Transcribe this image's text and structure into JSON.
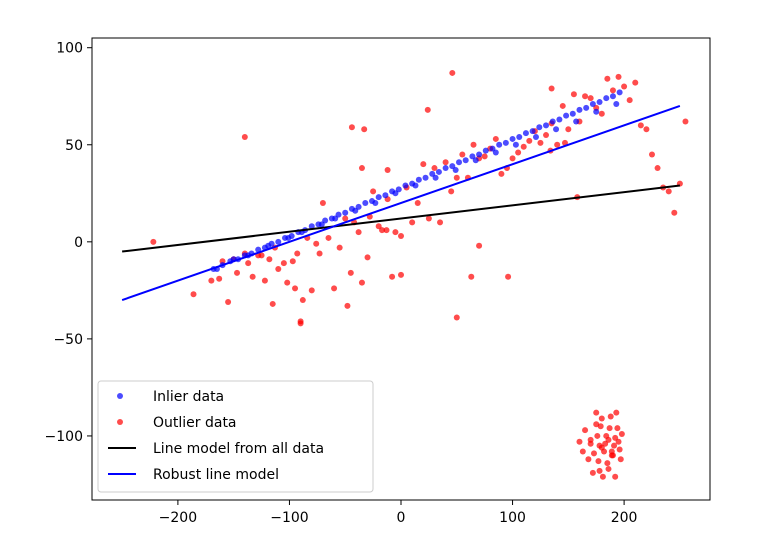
{
  "chart_data": {
    "type": "scatter",
    "title": "",
    "xlabel": "",
    "ylabel": "",
    "xlim": [
      -277,
      277
    ],
    "ylim": [
      -133,
      105
    ],
    "xticks": [
      -200,
      -100,
      0,
      100,
      200
    ],
    "xtick_labels": [
      "−200",
      "−100",
      "0",
      "100",
      "200"
    ],
    "yticks": [
      -100,
      -50,
      0,
      50,
      100
    ],
    "ytick_labels": [
      "−100",
      "−50",
      "0",
      "50",
      "100"
    ],
    "grid": false,
    "legend_position": "lower-left",
    "series": [
      {
        "name": "Inlier data",
        "kind": "points",
        "color": "#0000ff",
        "x": [
          -168,
          -160,
          -153,
          -146,
          -140,
          -134,
          -128,
          -122,
          -116,
          -110,
          -104,
          -98,
          -92,
          -86,
          -80,
          -74,
          -68,
          -62,
          -56,
          -50,
          -44,
          -38,
          -32,
          -26,
          -20,
          -14,
          -8,
          -2,
          4,
          10,
          16,
          22,
          28,
          34,
          40,
          46,
          52,
          58,
          64,
          70,
          76,
          82,
          88,
          94,
          100,
          106,
          112,
          118,
          124,
          130,
          136,
          142,
          148,
          154,
          160,
          166,
          172,
          178,
          184,
          190,
          196,
          -165,
          -150,
          -137,
          -119,
          -101,
          -89,
          -71,
          -59,
          -41,
          -23,
          -5,
          13,
          31,
          49,
          67,
          85,
          103,
          121,
          139,
          157,
          175,
          193
        ],
        "y": [
          -14,
          -12,
          -10,
          -9,
          -7,
          -6,
          -4,
          -3,
          -1,
          0,
          2,
          3,
          5,
          6,
          8,
          9,
          11,
          12,
          14,
          15,
          17,
          18,
          20,
          21,
          23,
          24,
          26,
          27,
          29,
          30,
          32,
          33,
          35,
          36,
          38,
          39,
          41,
          42,
          44,
          45,
          47,
          48,
          50,
          51,
          53,
          54,
          56,
          57,
          59,
          60,
          62,
          63,
          65,
          66,
          68,
          69,
          71,
          72,
          74,
          75,
          77,
          -14,
          -9,
          -7,
          -2,
          2,
          5,
          9,
          12,
          16,
          20,
          25,
          29,
          33,
          37,
          42,
          46,
          50,
          54,
          58,
          62,
          67,
          71
        ]
      },
      {
        "name": "Outlier data",
        "kind": "points",
        "color": "#ff0000",
        "x": [
          -222,
          -186,
          -170,
          -163,
          -160,
          -155,
          -150,
          -147,
          -140,
          -137,
          -133,
          -128,
          -125,
          -122,
          -118,
          -115,
          -113,
          -110,
          -105,
          -102,
          -97,
          -95,
          -93,
          -90,
          -88,
          -84,
          -80,
          -76,
          -73,
          -70,
          -65,
          -60,
          -55,
          -50,
          -48,
          -45,
          -42,
          -38,
          -35,
          -30,
          -28,
          -25,
          -20,
          -17,
          -12,
          -8,
          -5,
          0,
          5,
          10,
          15,
          20,
          25,
          30,
          40,
          45,
          50,
          55,
          60,
          65,
          70,
          75,
          80,
          85,
          90,
          95,
          100,
          105,
          110,
          115,
          120,
          125,
          130,
          135,
          140,
          145,
          150,
          155,
          160,
          165,
          170,
          175,
          180,
          185,
          190,
          195,
          200,
          205,
          210,
          215,
          220,
          225,
          230,
          235,
          240,
          245,
          250,
          255,
          -140,
          46,
          -44,
          -35,
          24,
          -33,
          0,
          35,
          63,
          -90,
          50,
          96,
          -12,
          -13,
          135,
          134,
          70,
          147,
          158
        ],
        "y": [
          0,
          -27,
          -20,
          -19,
          -10,
          -31,
          -9,
          -16,
          -6,
          -11,
          -18,
          -7,
          -7,
          -20,
          -9,
          -32,
          -3,
          -14,
          -11,
          -21,
          -10,
          -24,
          -6,
          -41,
          -30,
          2,
          -25,
          -1,
          -6,
          20,
          2,
          -24,
          -3,
          12,
          -33,
          -16,
          10,
          5,
          -21,
          -8,
          13,
          26,
          8,
          6,
          22,
          -18,
          5,
          3,
          28,
          10,
          20,
          40,
          12,
          38,
          41,
          26,
          33,
          45,
          33,
          50,
          43,
          44,
          48,
          53,
          35,
          38,
          43,
          46,
          49,
          52,
          57,
          51,
          55,
          61,
          50,
          70,
          58,
          76,
          62,
          75,
          74,
          69,
          66,
          84,
          78,
          85,
          80,
          73,
          82,
          60,
          58,
          45,
          38,
          28,
          26,
          15,
          30,
          62,
          54,
          87,
          59,
          38,
          68,
          58,
          -17,
          10,
          -18,
          -42,
          -39,
          -18,
          37,
          6,
          79,
          47,
          -2,
          51,
          23
        ],
        "note_values_x_cluster": [
          160,
          163,
          165,
          168,
          170,
          172,
          173,
          175,
          176,
          177,
          178,
          179,
          180,
          181,
          182,
          183,
          184,
          185,
          186,
          187,
          188,
          189,
          190,
          191,
          192,
          193,
          194,
          195,
          196,
          197,
          198,
          175,
          178,
          180,
          186,
          189,
          170,
          192
        ],
        "note_values_y_cluster": [
          -103,
          -108,
          -97,
          -112,
          -104,
          -119,
          -109,
          -88,
          -100,
          -113,
          -105,
          -95,
          -91,
          -121,
          -108,
          -104,
          -100,
          -114,
          -117,
          -96,
          -90,
          -108,
          -110,
          -105,
          -101,
          -88,
          -96,
          -103,
          -107,
          -112,
          -99,
          -94,
          -118,
          -106,
          -102,
          -110,
          -102,
          -121
        ]
      },
      {
        "name": "Line model from all data",
        "kind": "line",
        "color": "#000000",
        "x": [
          -250,
          250
        ],
        "y": [
          -5,
          29
        ]
      },
      {
        "name": "Robust line model",
        "kind": "line",
        "color": "#0000ff",
        "x": [
          -250,
          250
        ],
        "y": [
          -30,
          70
        ]
      }
    ]
  }
}
